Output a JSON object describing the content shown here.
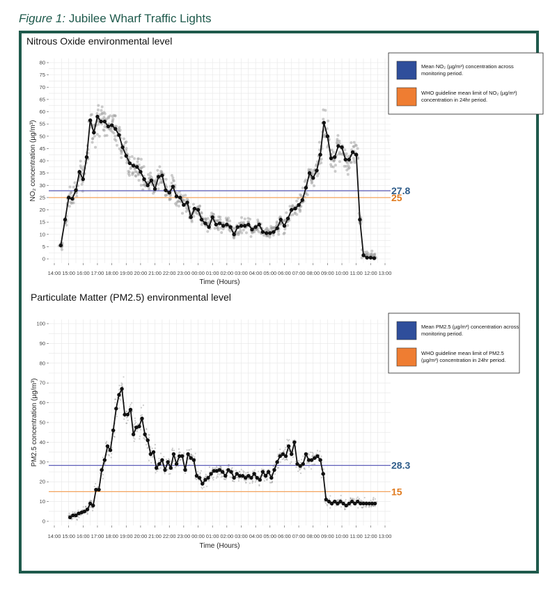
{
  "figure": {
    "caption_number": "Figure 1:",
    "caption_text": " Jubilee Wharf Traffic Lights",
    "frame_color": "#1f5a4c"
  },
  "chart_data": [
    {
      "type": "line",
      "title": "Nitrous Oxide environmental level",
      "xlabel": "Time (Hours)",
      "ylabel": "NO₂ concentration (µg/m³)",
      "x_ticks": [
        "14:00",
        "15:00",
        "16:00",
        "17:00",
        "18:00",
        "19:00",
        "20:00",
        "21:00",
        "22:00",
        "23:00",
        "00:00",
        "01:00",
        "02:00",
        "03:00",
        "04:00",
        "05:00",
        "06:00",
        "07:00",
        "08:00",
        "09:00",
        "10:00",
        "11:00",
        "12:00",
        "13:00"
      ],
      "xlim": [
        0,
        23
      ],
      "ylim": [
        0,
        80
      ],
      "y_ticks": [
        0,
        5,
        10,
        15,
        20,
        25,
        30,
        35,
        40,
        45,
        50,
        55,
        60,
        65,
        70,
        75,
        80
      ],
      "grid": true,
      "series": [
        {
          "role": "mean-of-readings",
          "color": "#111111",
          "x": [
            0.45,
            0.75,
            1.0,
            1.25,
            1.5,
            1.75,
            2.0,
            2.25,
            2.5,
            2.75,
            3.0,
            3.25,
            3.5,
            3.75,
            4.0,
            4.25,
            4.5,
            4.75,
            5.0,
            5.25,
            5.5,
            5.75,
            6.0,
            6.25,
            6.5,
            6.75,
            7.0,
            7.25,
            7.5,
            7.75,
            8.0,
            8.25,
            8.5,
            8.75,
            9.0,
            9.25,
            9.5,
            9.75,
            10.0,
            10.25,
            10.5,
            10.75,
            11.0,
            11.25,
            11.5,
            11.75,
            12.0,
            12.25,
            12.5,
            12.75,
            13.0,
            13.25,
            13.5,
            13.75,
            14.0,
            14.25,
            14.5,
            14.75,
            15.0,
            15.25,
            15.5,
            15.75,
            16.0,
            16.25,
            16.5,
            16.75,
            17.0,
            17.25,
            17.5,
            17.75,
            18.0,
            18.25,
            18.5,
            18.75,
            19.0,
            19.25,
            19.5,
            19.75,
            20.0,
            20.25,
            20.5,
            20.75,
            21.0,
            21.25,
            21.5,
            21.75,
            22.0,
            22.25
          ],
          "y": [
            5.5,
            16,
            25,
            24.5,
            28,
            35.5,
            32.5,
            41.5,
            56.5,
            51.5,
            58,
            56,
            56,
            54,
            54.5,
            53,
            50.5,
            45.5,
            42,
            39,
            38,
            37.5,
            35.5,
            32.5,
            30,
            32,
            28.5,
            33.5,
            34,
            28,
            27,
            29.5,
            25.5,
            25,
            22,
            23,
            17,
            20.5,
            20,
            16,
            14.5,
            13,
            17,
            14,
            14.5,
            13.5,
            14,
            13,
            10,
            13,
            13.5,
            13.5,
            14,
            12,
            13,
            14,
            11,
            10.5,
            10.5,
            11,
            12.5,
            16,
            13.5,
            16.5,
            20,
            20.5,
            22,
            24,
            29,
            35,
            33,
            36,
            42.5,
            55.5,
            50,
            41,
            41.5,
            46,
            45.5,
            40.5,
            40.5,
            43.5,
            42.5,
            16,
            1.5,
            0.5,
            0.5,
            0.3
          ]
        }
      ],
      "reference_lines": [
        {
          "name": "Mean NO₂ (µg/m³) concentration across monitoring period.",
          "value": 27.8,
          "label": "27.8",
          "color": "#5c5cb8",
          "label_color": "#2e5c8a",
          "legend_swatch": "#2f4e9b"
        },
        {
          "name": "WHO guideline mean limit of NO₂ (µg/m³) concentration in 24hr period.",
          "value": 25,
          "label": "25",
          "color": "#f3a35c",
          "label_color": "#e07b1f",
          "legend_swatch": "#ef7d32"
        }
      ],
      "legend_position": "top-right",
      "scatter_color": "#999999"
    },
    {
      "type": "line",
      "title": "Particulate Matter (PM2.5) environmental level",
      "xlabel": "Time (Hours)",
      "ylabel": "PM2.5 concentration (µg/m³)",
      "x_ticks": [
        "14:00",
        "15:00",
        "16:00",
        "17:00",
        "18:00",
        "19:00",
        "20:00",
        "21:00",
        "22:00",
        "23:00",
        "00:00",
        "01:00",
        "02:00",
        "03:00",
        "04:00",
        "05:00",
        "06:00",
        "07:00",
        "08:00",
        "09:00",
        "10:00",
        "11:00",
        "12:00",
        "13:00"
      ],
      "xlim": [
        0,
        23
      ],
      "ylim": [
        0,
        100
      ],
      "y_ticks": [
        0,
        10,
        20,
        30,
        40,
        50,
        60,
        70,
        80,
        90,
        100
      ],
      "grid": true,
      "series": [
        {
          "role": "mean-of-readings",
          "color": "#111111",
          "x": [
            1.1,
            1.3,
            1.5,
            1.7,
            1.9,
            2.1,
            2.3,
            2.5,
            2.7,
            2.9,
            3.1,
            3.3,
            3.5,
            3.7,
            3.9,
            4.1,
            4.3,
            4.5,
            4.7,
            4.9,
            5.1,
            5.3,
            5.5,
            5.7,
            5.9,
            6.1,
            6.3,
            6.5,
            6.7,
            6.9,
            7.1,
            7.3,
            7.5,
            7.7,
            7.9,
            8.1,
            8.3,
            8.5,
            8.7,
            8.9,
            9.1,
            9.3,
            9.5,
            9.7,
            9.9,
            10.1,
            10.3,
            10.5,
            10.7,
            10.9,
            11.1,
            11.3,
            11.5,
            11.7,
            11.9,
            12.1,
            12.3,
            12.5,
            12.7,
            12.9,
            13.1,
            13.3,
            13.5,
            13.7,
            13.9,
            14.1,
            14.3,
            14.5,
            14.7,
            14.9,
            15.1,
            15.3,
            15.5,
            15.7,
            15.9,
            16.1,
            16.3,
            16.5,
            16.7,
            16.9,
            17.1,
            17.3,
            17.5,
            17.7,
            17.9,
            18.1,
            18.3,
            18.5,
            18.7,
            18.9,
            19.1,
            19.3,
            19.5,
            19.7,
            19.9,
            20.1,
            20.3,
            20.5,
            20.7,
            20.9,
            21.1,
            21.3,
            21.5,
            21.7,
            21.9,
            22.1,
            22.3
          ],
          "y": [
            2,
            3,
            3,
            4,
            4.5,
            5,
            6,
            9,
            8,
            16,
            16,
            26,
            31,
            38,
            36,
            46,
            57,
            64,
            67,
            54,
            54,
            56.5,
            44,
            47.5,
            48,
            52,
            44,
            41,
            34,
            35,
            27,
            29,
            31,
            26,
            30,
            27,
            34,
            29,
            33,
            33,
            26,
            34,
            32,
            31,
            23,
            22,
            19,
            21,
            22,
            24,
            25.5,
            25.5,
            26,
            25,
            23,
            26,
            25,
            22,
            24,
            23,
            23,
            22,
            23,
            22,
            24,
            22,
            21,
            25,
            23,
            25,
            22,
            26,
            30,
            33,
            34,
            33,
            38,
            34,
            40,
            29,
            28,
            29,
            34,
            31,
            31,
            32,
            33,
            31,
            24,
            11,
            10,
            9,
            10,
            9,
            10,
            9,
            8,
            9,
            10,
            9,
            10,
            9,
            9,
            9,
            9,
            9,
            9
          ],
          "series_note": ""
        }
      ],
      "reference_lines": [
        {
          "name": "Mean PM2.5 (µg/m³) concentration across monitoring period.",
          "value": 28.3,
          "label": "28.3",
          "color": "#5c5cb8",
          "label_color": "#2e5c8a",
          "legend_swatch": "#2f4e9b"
        },
        {
          "name": "WHO guideline mean limit of PM2.5 (µg/m³) concentration in 24hr period.",
          "value": 15,
          "label": "15",
          "color": "#f3a35c",
          "label_color": "#e07b1f",
          "legend_swatch": "#ef7d32"
        }
      ],
      "legend_position": "top-right",
      "scatter_color": "#999999"
    }
  ]
}
